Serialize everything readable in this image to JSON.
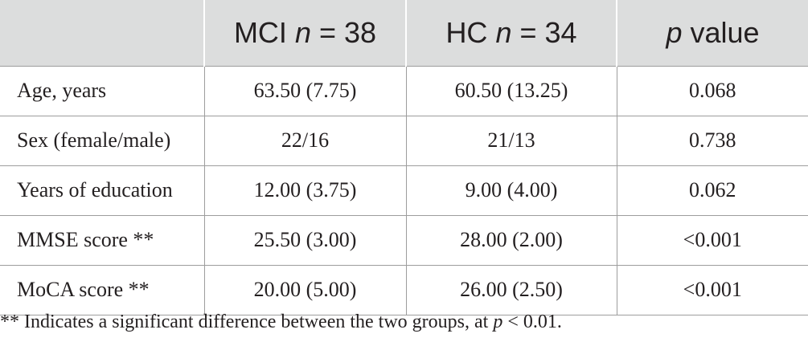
{
  "table": {
    "header": {
      "col0": "",
      "mci_prefix": "MCI ",
      "mci_n": "n",
      "mci_suffix": " = 38",
      "hc_prefix": "HC ",
      "hc_n": "n",
      "hc_suffix": " = 34",
      "p_italic": "p",
      "p_suffix": " value"
    },
    "rows": [
      {
        "label": "Age, years",
        "mci": "63.50 (7.75)",
        "hc": "60.50 (13.25)",
        "p": "0.068"
      },
      {
        "label": "Sex (female/male)",
        "mci": "22/16",
        "hc": "21/13",
        "p": "0.738"
      },
      {
        "label": "Years of education",
        "mci": "12.00 (3.75)",
        "hc": "9.00 (4.00)",
        "p": "0.062"
      },
      {
        "label": "MMSE score **",
        "mci": "25.50 (3.00)",
        "hc": "28.00 (2.00)",
        "p": "<0.001"
      },
      {
        "label": "MoCA score **",
        "mci": "20.00 (5.00)",
        "hc": "26.00 (2.50)",
        "p": "<0.001"
      }
    ]
  },
  "footnote": {
    "prefix": "** Indicates a significant difference between the two groups, at ",
    "p_italic": "p",
    "suffix": " < 0.01."
  }
}
